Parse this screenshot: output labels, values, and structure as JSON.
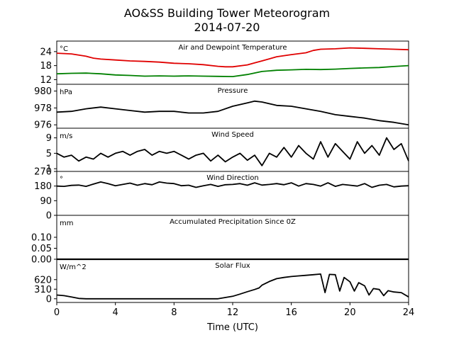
{
  "figure": {
    "title_line1": "AO&SS Building Tower Meteorogram",
    "title_line2": "2014-07-20",
    "xlabel": "Time (UTC)"
  },
  "chart_data": [
    {
      "type": "line",
      "title": "Air and Dewpoint Temperature",
      "unit": "°C",
      "xlim": [
        0,
        24
      ],
      "ylim": [
        10,
        28.5
      ],
      "yticks": [
        "24",
        "18",
        "12"
      ],
      "ytick_values": [
        24,
        18,
        12
      ],
      "series": [
        {
          "color": "#e00000",
          "x": [
            0,
            1,
            2,
            2.5,
            3,
            4,
            5,
            6,
            7,
            8,
            9,
            10,
            11,
            11.5,
            12,
            13,
            13.5,
            14,
            15,
            16,
            17,
            17.5,
            18,
            19,
            20,
            21,
            22,
            23,
            24
          ],
          "values": [
            23.3,
            23,
            22,
            21.2,
            20.8,
            20.4,
            20,
            19.8,
            19.5,
            19,
            18.8,
            18.4,
            17.7,
            17.5,
            17.5,
            18.3,
            19.2,
            20,
            21.8,
            22.7,
            23.5,
            24.5,
            25,
            25.2,
            25.6,
            25.4,
            25.2,
            25,
            24.8
          ]
        },
        {
          "color": "#008000",
          "x": [
            0,
            1,
            2,
            3,
            4,
            5,
            6,
            7,
            8,
            9,
            10,
            11,
            12,
            13,
            14,
            15,
            16,
            17,
            18,
            19,
            20,
            21,
            22,
            23,
            24
          ],
          "values": [
            14.5,
            14.7,
            14.8,
            14.5,
            14,
            13.8,
            13.5,
            13.6,
            13.5,
            13.6,
            13.5,
            13.4,
            13.3,
            14.2,
            15.5,
            16,
            16.2,
            16.4,
            16.3,
            16.5,
            16.8,
            17,
            17.2,
            17.6,
            18
          ]
        }
      ]
    },
    {
      "type": "line",
      "title": "Pressure",
      "unit": "hPa",
      "xlim": [
        0,
        24
      ],
      "ylim": [
        975.6,
        980.8
      ],
      "yticks": [
        "980",
        "978",
        "976"
      ],
      "ytick_values": [
        980,
        978,
        976
      ],
      "series": [
        {
          "color": "#000000",
          "x": [
            0,
            1,
            2,
            3,
            4,
            5,
            6,
            7,
            8,
            9,
            10,
            11,
            12,
            13,
            13.5,
            14,
            15,
            16,
            17,
            18,
            19,
            20,
            21,
            22,
            23,
            24
          ],
          "values": [
            977.5,
            977.6,
            977.9,
            978.1,
            977.9,
            977.7,
            977.5,
            977.6,
            977.6,
            977.4,
            977.4,
            977.6,
            978.2,
            978.6,
            978.8,
            978.7,
            978.3,
            978.2,
            977.9,
            977.6,
            977.2,
            977,
            976.8,
            976.5,
            976.3,
            976
          ]
        }
      ]
    },
    {
      "type": "line",
      "title": "Wind Speed",
      "unit": "m/s",
      "xlim": [
        0,
        24
      ],
      "ylim": [
        0.3,
        11.5
      ],
      "yticks": [
        "9",
        "5",
        "1"
      ],
      "ytick_values": [
        9,
        5,
        1
      ],
      "series": [
        {
          "color": "#000000",
          "x": [
            0,
            0.5,
            1,
            1.5,
            2,
            2.5,
            3,
            3.5,
            4,
            4.5,
            5,
            5.5,
            6,
            6.5,
            7,
            7.5,
            8,
            8.5,
            9,
            9.5,
            10,
            10.5,
            11,
            11.5,
            12,
            12.5,
            13,
            13.5,
            14,
            14.5,
            15,
            15.5,
            16,
            16.5,
            17,
            17.5,
            18,
            18.5,
            19,
            19.5,
            20,
            20.5,
            21,
            21.5,
            22,
            22.5,
            23,
            23.5,
            24
          ],
          "values": [
            5,
            4,
            4.5,
            3,
            4,
            3.5,
            5,
            4,
            5,
            5.5,
            4.5,
            5.5,
            6,
            4.5,
            5.5,
            5,
            5.5,
            4.5,
            3.5,
            4.5,
            5,
            3,
            4.5,
            2.8,
            4,
            5,
            3.2,
            4.5,
            1.8,
            5,
            4,
            6.5,
            4,
            7,
            5,
            3.5,
            8,
            4,
            7.5,
            5.5,
            3.5,
            8,
            5,
            7,
            4.5,
            9,
            6,
            7.5,
            3
          ]
        }
      ]
    },
    {
      "type": "line",
      "title": "Wind Direction",
      "unit": "°",
      "xlim": [
        0,
        24
      ],
      "ylim": [
        0,
        270
      ],
      "yticks": [
        "270",
        "180",
        "90",
        "0"
      ],
      "ytick_values": [
        270,
        180,
        90,
        0
      ],
      "series": [
        {
          "color": "#000000",
          "x": [
            0,
            0.5,
            1,
            1.5,
            2,
            2.5,
            3,
            3.5,
            4,
            4.5,
            5,
            5.5,
            6,
            6.5,
            7,
            7.5,
            8,
            8.5,
            9,
            9.5,
            10,
            10.5,
            11,
            11.5,
            12,
            12.5,
            13,
            13.5,
            14,
            14.5,
            15,
            15.5,
            16,
            16.5,
            17,
            17.5,
            18,
            18.5,
            19,
            19.5,
            20,
            20.5,
            21,
            21.5,
            22,
            22.5,
            23,
            23.5,
            24
          ],
          "values": [
            180,
            178,
            184,
            186,
            178,
            192,
            205,
            195,
            182,
            190,
            198,
            185,
            195,
            188,
            205,
            198,
            195,
            182,
            185,
            172,
            182,
            190,
            178,
            188,
            190,
            195,
            185,
            200,
            186,
            190,
            195,
            188,
            200,
            180,
            195,
            190,
            180,
            200,
            178,
            190,
            185,
            180,
            195,
            172,
            185,
            190,
            175,
            180,
            182
          ]
        }
      ]
    },
    {
      "type": "line",
      "title": "Accumulated Precipitation Since 0Z",
      "unit": "mm",
      "xlim": [
        0,
        24
      ],
      "ylim": [
        0,
        0.2
      ],
      "yticks": [
        "0.10",
        "0.05",
        "0.00"
      ],
      "ytick_values": [
        0.1,
        0.05,
        0
      ],
      "series": [
        {
          "color": "#000000",
          "x": [
            0,
            24
          ],
          "values": [
            0,
            0
          ]
        }
      ]
    },
    {
      "type": "line",
      "title": "Solar Flux",
      "unit": "W/m^2",
      "xlim": [
        0,
        24
      ],
      "ylim": [
        -120,
        1280
      ],
      "yticks": [
        "620",
        "310",
        "0"
      ],
      "ytick_values": [
        620,
        310,
        0
      ],
      "series": [
        {
          "color": "#000000",
          "x": [
            0,
            0.5,
            1,
            1.5,
            2,
            4,
            6,
            8,
            10,
            11,
            12,
            12.5,
            13,
            13.5,
            13.8,
            14,
            14.5,
            15,
            15.5,
            16,
            16.5,
            17,
            17.5,
            18,
            18.3,
            18.6,
            19,
            19.3,
            19.6,
            20,
            20.3,
            20.6,
            21,
            21.3,
            21.6,
            22,
            22.3,
            22.6,
            23,
            23.5,
            24
          ],
          "values": [
            120,
            100,
            60,
            10,
            0,
            0,
            0,
            0,
            0,
            0,
            80,
            150,
            230,
            300,
            350,
            440,
            560,
            650,
            690,
            720,
            740,
            760,
            780,
            800,
            200,
            790,
            780,
            250,
            690,
            550,
            250,
            520,
            420,
            120,
            330,
            300,
            100,
            260,
            220,
            200,
            60
          ]
        }
      ]
    }
  ]
}
